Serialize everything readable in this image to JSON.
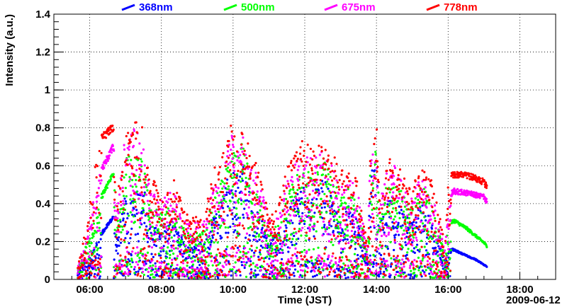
{
  "chart_data": {
    "type": "scatter",
    "title": "",
    "xlabel": "Time (JST)",
    "ylabel": "Intensity (a.u.)",
    "date_label": "2009-06-12",
    "xlim": [
      "05:00",
      "19:00"
    ],
    "ylim": [
      0,
      1.4
    ],
    "grid": true,
    "legend_position": "top",
    "x_tick_labels": [
      "06:00",
      "08:00",
      "10:00",
      "12:00",
      "14:00",
      "16:00",
      "18:00"
    ],
    "y_tick_labels": [
      "0",
      "0.2",
      "0.4",
      "0.6",
      "0.8",
      "1",
      "1.2",
      "1.4"
    ],
    "y_ticks": [
      0,
      0.2,
      0.4,
      0.6,
      0.8,
      1.0,
      1.2,
      1.4
    ],
    "series": [
      {
        "name": "368nm",
        "color": "#0000ff",
        "envelope_x": [
          "05:40",
          "05:55",
          "06:05",
          "06:20",
          "06:40",
          "06:45",
          "07:00",
          "07:15",
          "07:30",
          "07:40",
          "08:00",
          "08:20",
          "08:40",
          "09:10",
          "09:30",
          "09:45",
          "09:55",
          "10:05",
          "10:15",
          "10:30",
          "10:45",
          "11:00",
          "11:15",
          "11:30",
          "11:45",
          "12:00",
          "12:15",
          "12:30",
          "12:45",
          "13:00",
          "13:15",
          "13:30",
          "13:45",
          "13:50",
          "14:00",
          "14:05",
          "14:15",
          "14:30",
          "14:45",
          "15:00",
          "15:15",
          "15:30",
          "15:45",
          "15:55",
          "16:00",
          "16:10",
          "16:30",
          "16:45",
          "17:00",
          "17:05"
        ],
        "envelope_y": [
          0.04,
          0.12,
          0.16,
          0.25,
          0.34,
          0.2,
          0.45,
          0.47,
          0.52,
          0.3,
          0.25,
          0.32,
          0.18,
          0.2,
          0.35,
          0.45,
          0.6,
          0.55,
          0.62,
          0.45,
          0.35,
          0.2,
          0.25,
          0.35,
          0.45,
          0.5,
          0.45,
          0.55,
          0.45,
          0.35,
          0.4,
          0.3,
          0.1,
          0.55,
          0.65,
          0.3,
          0.4,
          0.45,
          0.35,
          0.3,
          0.4,
          0.35,
          0.2,
          0.1,
          0.17,
          0.16,
          0.13,
          0.11,
          0.08,
          0.07
        ]
      },
      {
        "name": "500nm",
        "color": "#00ff00",
        "envelope_x": [
          "05:40",
          "05:55",
          "06:05",
          "06:20",
          "06:40",
          "06:45",
          "07:00",
          "07:15",
          "07:30",
          "07:40",
          "08:00",
          "08:20",
          "08:40",
          "09:10",
          "09:30",
          "09:45",
          "09:55",
          "10:05",
          "10:15",
          "10:30",
          "10:45",
          "11:00",
          "11:15",
          "11:30",
          "11:45",
          "12:00",
          "12:15",
          "12:30",
          "12:45",
          "13:00",
          "13:15",
          "13:30",
          "13:45",
          "13:50",
          "14:00",
          "14:05",
          "14:15",
          "14:30",
          "14:45",
          "15:00",
          "15:15",
          "15:30",
          "15:45",
          "15:55",
          "16:00",
          "16:10",
          "16:30",
          "16:45",
          "17:00",
          "17:05"
        ],
        "envelope_y": [
          0.05,
          0.2,
          0.3,
          0.45,
          0.58,
          0.3,
          0.65,
          0.68,
          0.62,
          0.4,
          0.35,
          0.4,
          0.25,
          0.25,
          0.45,
          0.55,
          0.7,
          0.65,
          0.72,
          0.55,
          0.45,
          0.25,
          0.3,
          0.45,
          0.55,
          0.6,
          0.55,
          0.65,
          0.55,
          0.45,
          0.5,
          0.4,
          0.12,
          0.62,
          0.7,
          0.35,
          0.5,
          0.55,
          0.45,
          0.4,
          0.5,
          0.45,
          0.25,
          0.12,
          0.3,
          0.32,
          0.28,
          0.24,
          0.2,
          0.18
        ]
      },
      {
        "name": "675nm",
        "color": "#ff00ff",
        "envelope_x": [
          "05:40",
          "05:55",
          "06:05",
          "06:20",
          "06:40",
          "06:45",
          "07:00",
          "07:15",
          "07:30",
          "07:40",
          "08:00",
          "08:20",
          "08:40",
          "09:10",
          "09:30",
          "09:45",
          "09:55",
          "10:05",
          "10:15",
          "10:30",
          "10:45",
          "11:00",
          "11:15",
          "11:30",
          "11:45",
          "12:00",
          "12:15",
          "12:30",
          "12:45",
          "13:00",
          "13:15",
          "13:30",
          "13:45",
          "13:50",
          "14:00",
          "14:05",
          "14:15",
          "14:30",
          "14:45",
          "15:00",
          "15:15",
          "15:30",
          "15:45",
          "15:55",
          "16:00",
          "16:10",
          "16:30",
          "16:45",
          "17:00",
          "17:05"
        ],
        "envelope_y": [
          0.06,
          0.25,
          0.4,
          0.6,
          0.72,
          0.35,
          0.78,
          0.8,
          0.72,
          0.48,
          0.42,
          0.48,
          0.3,
          0.3,
          0.55,
          0.65,
          0.78,
          0.72,
          0.78,
          0.62,
          0.52,
          0.3,
          0.35,
          0.52,
          0.62,
          0.68,
          0.62,
          0.72,
          0.62,
          0.52,
          0.55,
          0.45,
          0.15,
          0.7,
          0.78,
          0.4,
          0.55,
          0.62,
          0.52,
          0.45,
          0.55,
          0.5,
          0.3,
          0.15,
          0.45,
          0.48,
          0.47,
          0.46,
          0.45,
          0.42
        ]
      },
      {
        "name": "778nm",
        "color": "#ff0000",
        "envelope_x": [
          "05:40",
          "05:55",
          "06:05",
          "06:20",
          "06:40",
          "06:45",
          "07:00",
          "07:15",
          "07:30",
          "07:40",
          "08:00",
          "08:20",
          "08:40",
          "09:10",
          "09:30",
          "09:45",
          "09:55",
          "10:05",
          "10:15",
          "10:30",
          "10:45",
          "11:00",
          "11:15",
          "11:30",
          "11:45",
          "12:00",
          "12:15",
          "12:30",
          "12:45",
          "13:00",
          "13:15",
          "13:30",
          "13:45",
          "13:50",
          "14:00",
          "14:05",
          "14:15",
          "14:30",
          "14:45",
          "15:00",
          "15:15",
          "15:30",
          "15:45",
          "15:55",
          "16:00",
          "16:10",
          "16:30",
          "16:45",
          "17:00",
          "17:05"
        ],
        "envelope_y": [
          0.07,
          0.3,
          0.55,
          0.78,
          0.82,
          0.4,
          0.85,
          0.84,
          0.8,
          0.55,
          0.48,
          0.55,
          0.35,
          0.32,
          0.6,
          0.7,
          0.82,
          0.78,
          0.82,
          0.68,
          0.58,
          0.32,
          0.4,
          0.58,
          0.7,
          0.75,
          0.68,
          0.78,
          0.68,
          0.58,
          0.6,
          0.5,
          0.18,
          0.78,
          0.83,
          0.45,
          0.6,
          0.68,
          0.58,
          0.5,
          0.6,
          0.55,
          0.35,
          0.18,
          0.55,
          0.57,
          0.57,
          0.55,
          0.53,
          0.5
        ]
      }
    ]
  }
}
